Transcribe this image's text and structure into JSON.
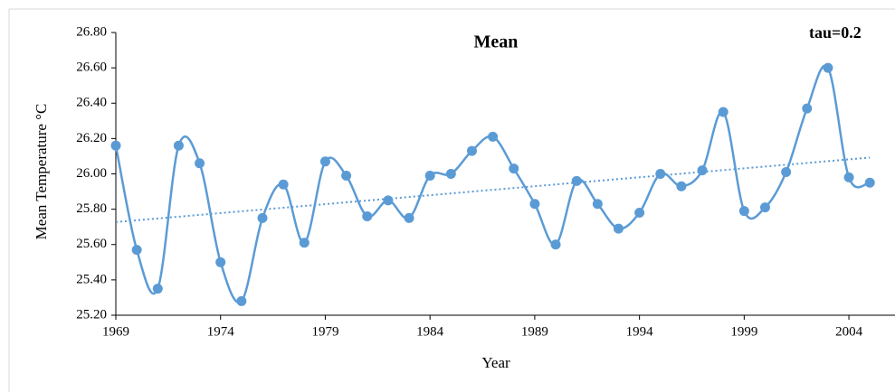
{
  "chart_data": {
    "type": "line",
    "title": "Mean",
    "annotation": "tau=0.2",
    "x_label": "Year",
    "y_label": "Mean Temperature °C",
    "x": [
      1969,
      1970,
      1971,
      1972,
      1973,
      1974,
      1975,
      1976,
      1977,
      1978,
      1979,
      1980,
      1981,
      1982,
      1983,
      1984,
      1985,
      1986,
      1987,
      1988,
      1989,
      1990,
      1991,
      1992,
      1993,
      1994,
      1995,
      1996,
      1997,
      1998,
      1999,
      2000,
      2001,
      2002,
      2003,
      2004,
      2005
    ],
    "series": [
      {
        "name": "Mean",
        "color": "#5b9bd5",
        "values": [
          26.16,
          25.57,
          25.35,
          26.16,
          26.06,
          25.5,
          25.28,
          25.75,
          25.94,
          25.61,
          26.07,
          25.99,
          25.76,
          25.85,
          25.75,
          25.99,
          26.0,
          26.13,
          26.21,
          26.03,
          25.83,
          25.6,
          25.96,
          25.83,
          25.69,
          25.78,
          26.0,
          25.93,
          26.02,
          26.35,
          25.79,
          25.81,
          26.01,
          26.37,
          26.6,
          25.98,
          25.95
        ]
      }
    ],
    "trendline": true,
    "xlim": [
      1969,
      2006.2
    ],
    "xticks": [
      1969,
      1974,
      1979,
      1984,
      1989,
      1994,
      1999,
      2004
    ],
    "ylim": [
      25.2,
      26.8
    ],
    "yticks": [
      {
        "value": 25.2,
        "label": "25.20"
      },
      {
        "value": 25.4,
        "label": "25.40"
      },
      {
        "value": 25.6,
        "label": "25.60"
      },
      {
        "value": 25.8,
        "label": "25.80"
      },
      {
        "value": 26.0,
        "label": "26.00"
      },
      {
        "value": 26.2,
        "label": "26.20"
      },
      {
        "value": 26.4,
        "label": "26.40"
      },
      {
        "value": 26.6,
        "label": "26.60"
      },
      {
        "value": 26.8,
        "label": "26.80"
      }
    ]
  }
}
